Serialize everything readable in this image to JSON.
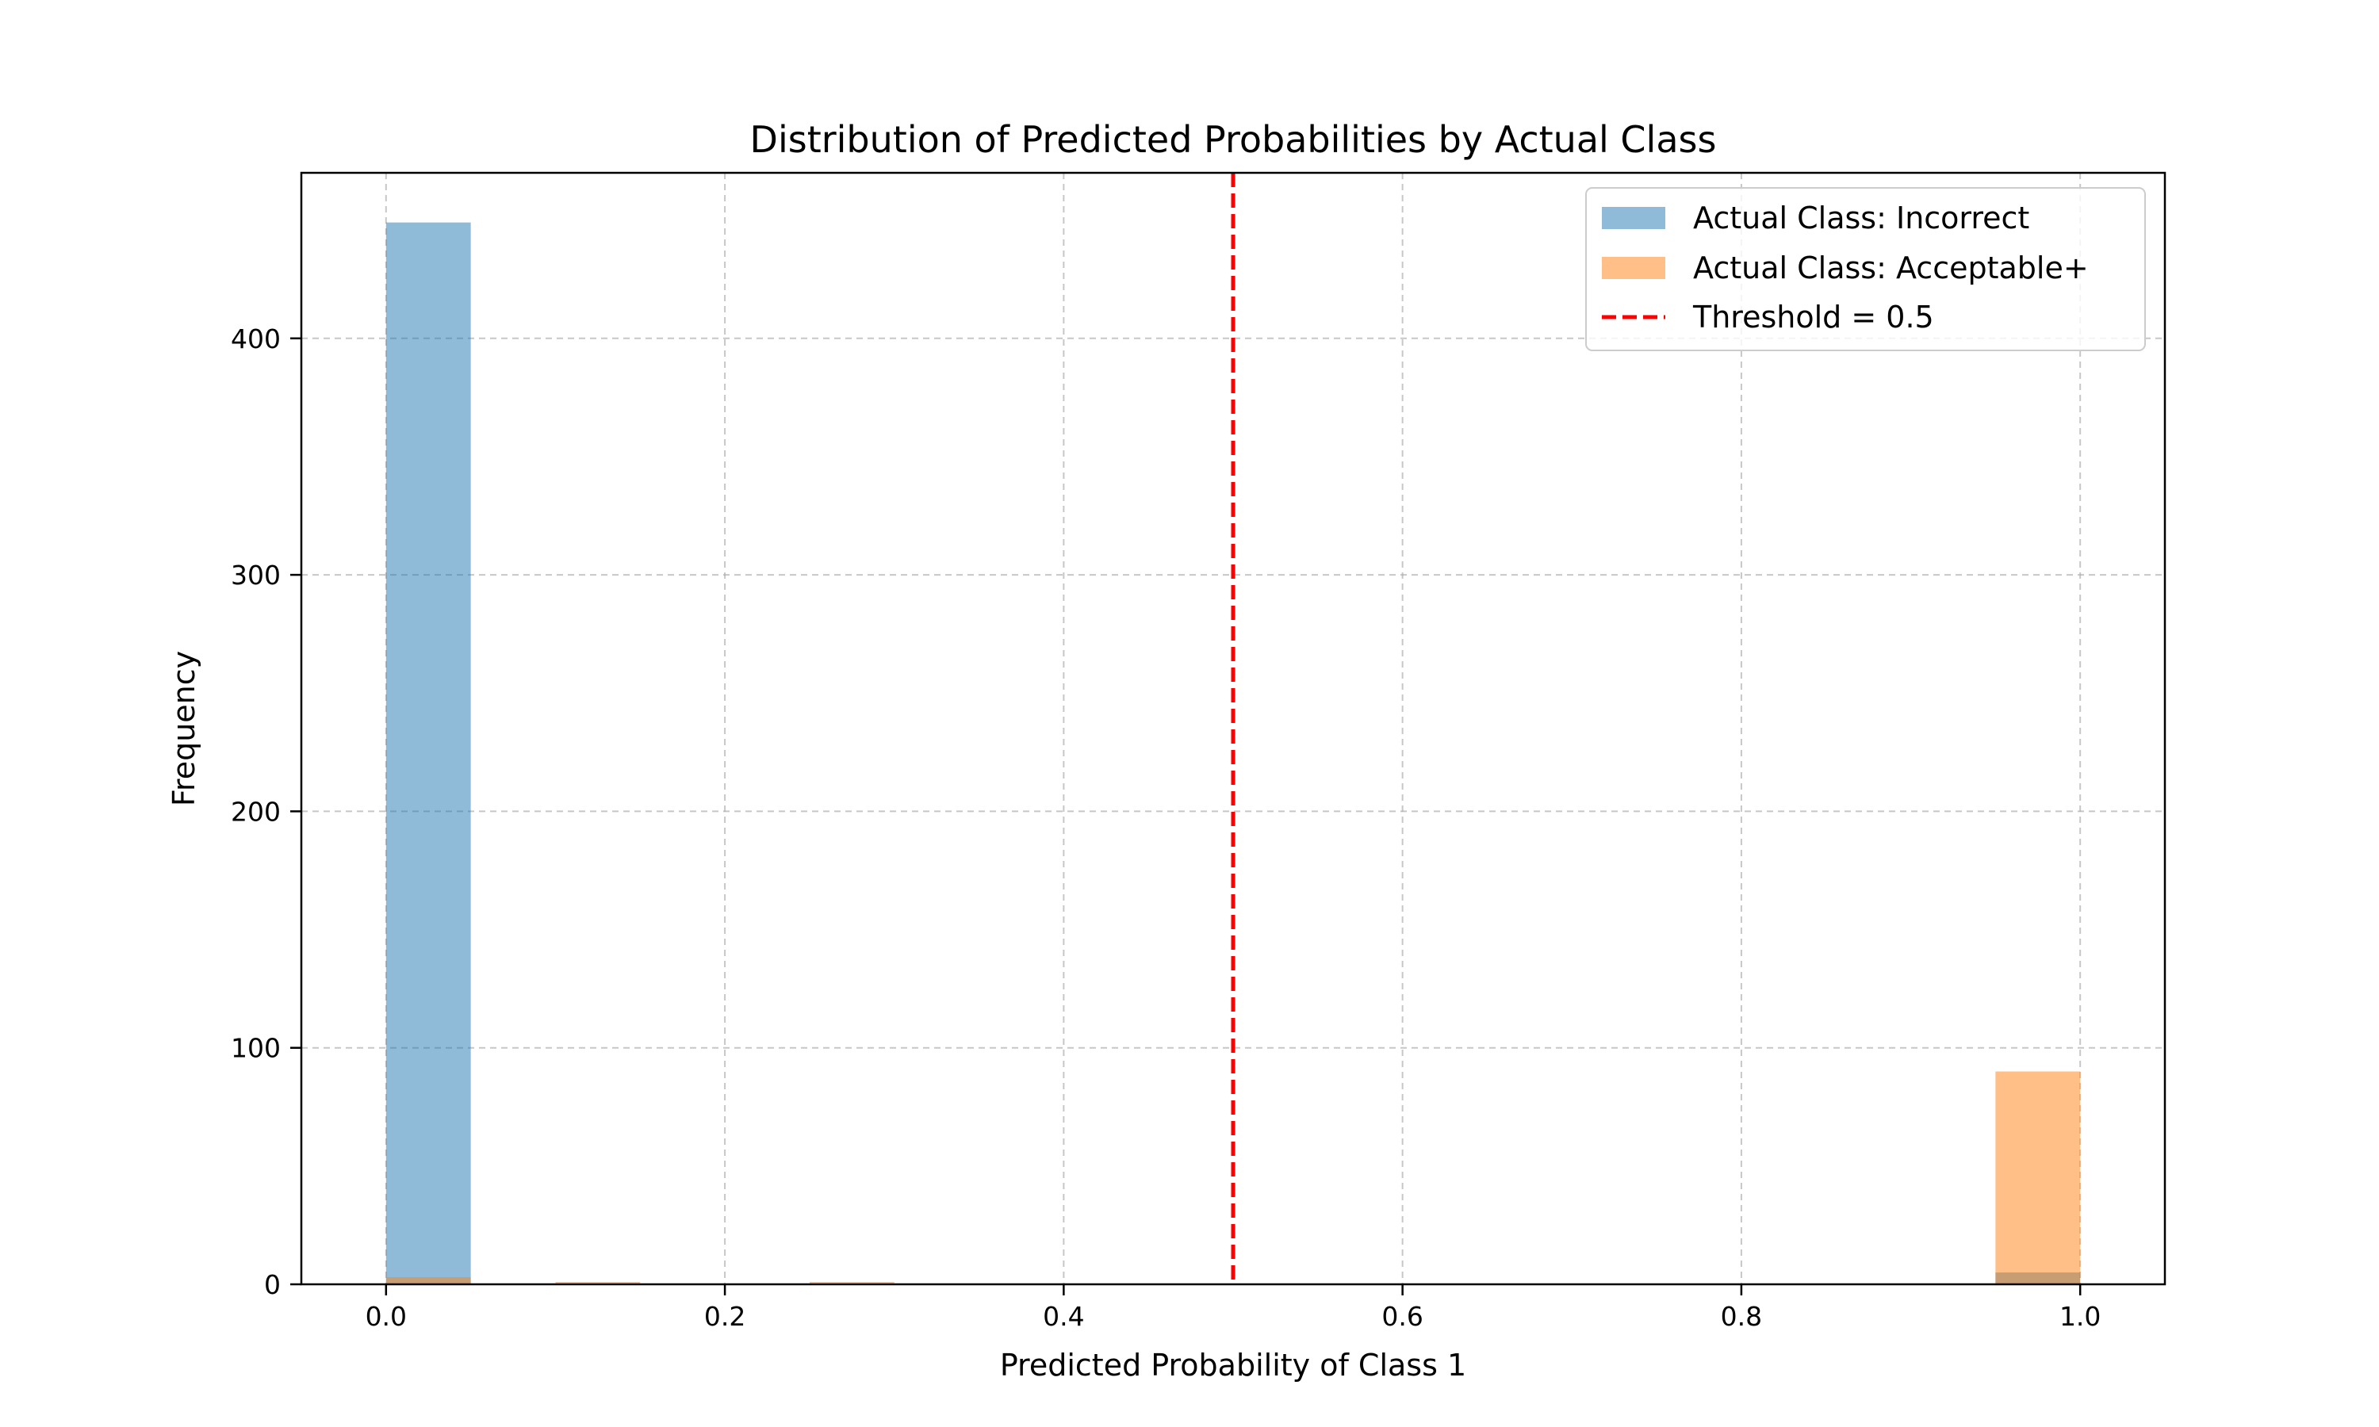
{
  "chart_data": {
    "type": "bar",
    "title": "Distribution of Predicted Probabilities by Actual Class",
    "xlabel": "Predicted Probability of Class 1",
    "ylabel": "Frequency",
    "xlim": [
      -0.05,
      1.05
    ],
    "ylim": [
      0,
      470
    ],
    "xticks": [
      0.0,
      0.2,
      0.4,
      0.6,
      0.8,
      1.0
    ],
    "xtick_labels": [
      "0.0",
      "0.2",
      "0.4",
      "0.6",
      "0.8",
      "1.0"
    ],
    "yticks": [
      0,
      100,
      200,
      300,
      400
    ],
    "ytick_labels": [
      "0",
      "100",
      "200",
      "300",
      "400"
    ],
    "grid": true,
    "legend_position": "top-right",
    "bin_width": 0.05,
    "series": [
      {
        "name": "Actual Class: Incorrect",
        "color": "#1f77b4",
        "bins": [
          {
            "x0": 0.0,
            "count": 449
          },
          {
            "x0": 0.95,
            "count": 5
          }
        ]
      },
      {
        "name": "Actual Class: Acceptable+",
        "color": "#ff7f0e",
        "bins": [
          {
            "x0": 0.0,
            "count": 3
          },
          {
            "x0": 0.1,
            "count": 1
          },
          {
            "x0": 0.25,
            "count": 1
          },
          {
            "x0": 0.95,
            "count": 90
          }
        ]
      }
    ],
    "threshold": {
      "name": "Threshold = 0.5",
      "value": 0.5,
      "color": "#ff0000"
    }
  }
}
